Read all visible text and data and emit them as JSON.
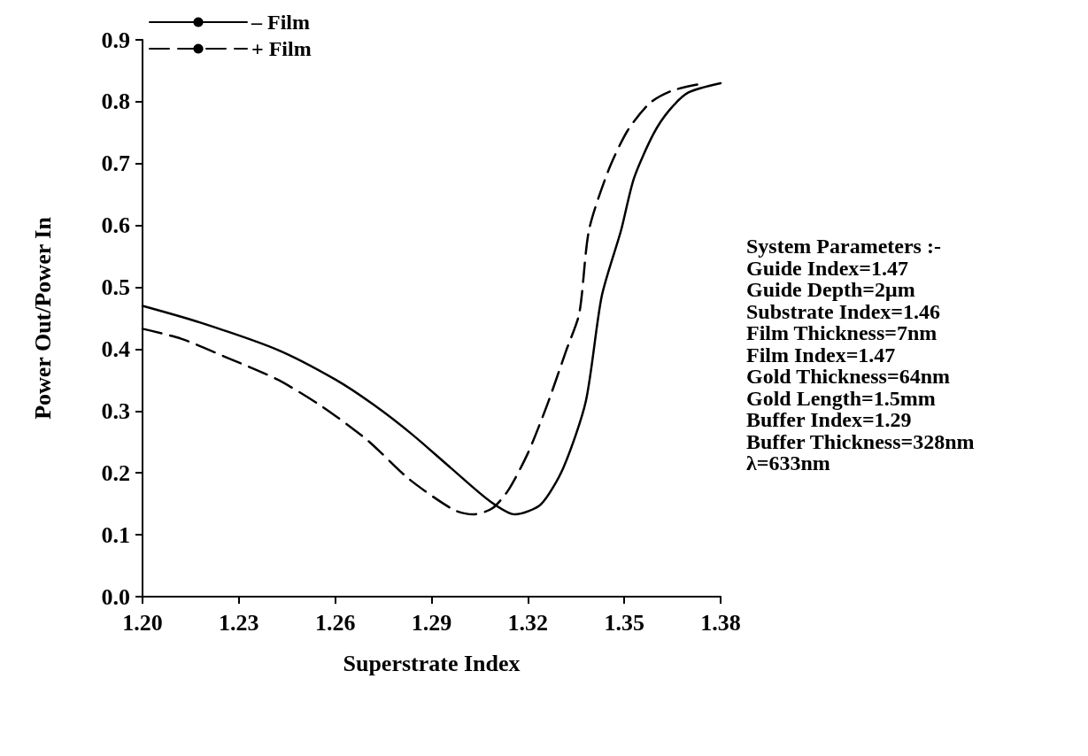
{
  "chart_data": {
    "type": "line",
    "xlabel": "Superstrate Index",
    "ylabel": "Power Out/Power In",
    "xlim": [
      1.2,
      1.38
    ],
    "xticks": [
      {
        "value": 1.2,
        "label": "1.20"
      },
      {
        "value": 1.23,
        "label": "1.23"
      },
      {
        "value": 1.26,
        "label": "1.26"
      },
      {
        "value": 1.29,
        "label": "1.29"
      },
      {
        "value": 1.32,
        "label": "1.32"
      },
      {
        "value": 1.35,
        "label": "1.35"
      },
      {
        "value": 1.38,
        "label": "1.38"
      }
    ],
    "ylim": [
      0,
      0.9
    ],
    "yticks": [
      {
        "value": 0,
        "label": "0.0"
      },
      {
        "value": 0.1,
        "label": "0.1"
      },
      {
        "value": 0.2,
        "label": "0.2"
      },
      {
        "value": 0.3,
        "label": "0.3"
      },
      {
        "value": 0.4,
        "label": "0.4"
      },
      {
        "value": 0.5,
        "label": "0.5"
      },
      {
        "value": 0.6,
        "label": "0.6"
      },
      {
        "value": 0.7,
        "label": "0.7"
      },
      {
        "value": 0.8,
        "label": "0.8"
      },
      {
        "value": 0.9,
        "label": "0.9"
      }
    ],
    "grid": false,
    "legend": "top left",
    "marker": "none",
    "series": [
      {
        "name": "– Film",
        "color": "#000000",
        "line_style": "solid",
        "x": [
          1.2,
          1.218,
          1.242,
          1.26,
          1.272,
          1.284,
          1.296,
          1.308,
          1.316,
          1.324,
          1.331,
          1.338,
          1.343,
          1.349,
          1.353,
          1.359,
          1.364,
          1.37,
          1.38
        ],
        "values": [
          0.47,
          0.443,
          0.399,
          0.351,
          0.31,
          0.262,
          0.208,
          0.155,
          0.133,
          0.149,
          0.208,
          0.315,
          0.486,
          0.592,
          0.676,
          0.747,
          0.786,
          0.815,
          0.83
        ]
      },
      {
        "name": "+ Film",
        "color": "#000000",
        "line_style": "dashed",
        "x": [
          1.2,
          1.212,
          1.226,
          1.242,
          1.256,
          1.27,
          1.283,
          1.297,
          1.303,
          1.309,
          1.314,
          1.32,
          1.326,
          1.332,
          1.336,
          1.339,
          1.345,
          1.351,
          1.358,
          1.365,
          1.374
        ],
        "values": [
          0.433,
          0.417,
          0.387,
          0.351,
          0.307,
          0.253,
          0.19,
          0.14,
          0.133,
          0.143,
          0.173,
          0.232,
          0.31,
          0.399,
          0.458,
          0.592,
          0.688,
          0.753,
          0.798,
          0.818,
          0.829
        ]
      }
    ],
    "annotations": [
      "System Parameters :-",
      "Guide Index=1.47",
      "Guide Depth=2μm",
      "Substrate Index=1.46",
      "Film Thickness=7nm",
      "Film Index=1.47",
      "Gold Thickness=64nm",
      "Gold Length=1.5mm",
      "Buffer Index=1.29",
      "Buffer Thickness=328nm",
      "λ=633nm"
    ]
  }
}
